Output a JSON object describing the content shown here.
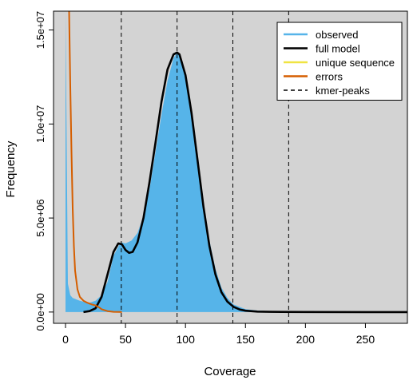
{
  "colors": {
    "plot_background": "#d3d3d3",
    "observed": "#56b4e9",
    "full_model": "#000000",
    "unique_sequence": "#f0e442",
    "errors": "#d55e00",
    "kmer_peaks": "#000000"
  },
  "chart_data": {
    "type": "area",
    "title": "",
    "xlabel": "Coverage",
    "ylabel": "Frequency",
    "xlim": [
      -10,
      285
    ],
    "ylim": [
      -600000,
      16000000
    ],
    "x_ticks": [
      0,
      50,
      100,
      150,
      200,
      250
    ],
    "x_tick_labels": [
      "0",
      "50",
      "100",
      "150",
      "200",
      "250"
    ],
    "y_ticks": [
      0,
      5000000,
      10000000,
      15000000
    ],
    "y_tick_labels": [
      "0.0e+00",
      "5.0e+06",
      "1.0e+07",
      "1.5e+07"
    ],
    "grid": false,
    "legend_position": "top-right",
    "legend": [
      {
        "label": "observed",
        "style": "observed"
      },
      {
        "label": "full model",
        "style": "full_model"
      },
      {
        "label": "unique sequence",
        "style": "unique_sequence"
      },
      {
        "label": "errors",
        "style": "errors"
      },
      {
        "label": "kmer-peaks",
        "style": "kmer_peaks"
      }
    ],
    "kmer_peaks": [
      46.5,
      93,
      139.5,
      186
    ],
    "series": [
      {
        "name": "observed",
        "style": "observed",
        "x": [
          0,
          2,
          4,
          6,
          8,
          10,
          12,
          15,
          20,
          25,
          30,
          35,
          40,
          45,
          47,
          50,
          55,
          60,
          65,
          70,
          75,
          80,
          85,
          90,
          93,
          95,
          100,
          105,
          110,
          115,
          120,
          125,
          130,
          135,
          140,
          150,
          160,
          170,
          180,
          200,
          250,
          285
        ],
        "y": [
          16000000,
          1500000,
          900000,
          750000,
          700000,
          650000,
          600000,
          550000,
          500000,
          600000,
          900000,
          1600000,
          3000000,
          3600000,
          3700000,
          3650000,
          3800000,
          4200000,
          5100000,
          6500000,
          8500000,
          10500000,
          12300000,
          13500000,
          13800000,
          13700000,
          12700000,
          10800000,
          8400000,
          5900000,
          3800000,
          2300000,
          1300000,
          750000,
          400000,
          150000,
          80000,
          50000,
          30000,
          10000,
          0,
          0
        ]
      },
      {
        "name": "full model",
        "style": "full_model",
        "x": [
          15,
          20,
          25,
          30,
          35,
          40,
          44,
          47,
          50,
          53,
          56,
          60,
          65,
          70,
          75,
          80,
          85,
          90,
          93,
          95,
          100,
          105,
          110,
          115,
          120,
          125,
          130,
          135,
          140,
          145,
          150,
          160,
          170,
          180,
          200,
          250,
          285
        ],
        "y": [
          0,
          50000,
          200000,
          800000,
          2000000,
          3200000,
          3650000,
          3600000,
          3300000,
          3150000,
          3200000,
          3700000,
          5000000,
          6900000,
          9000000,
          11200000,
          12900000,
          13700000,
          13800000,
          13700000,
          12600000,
          10600000,
          8100000,
          5600000,
          3500000,
          2000000,
          1050000,
          550000,
          280000,
          140000,
          70000,
          25000,
          10000,
          5000,
          2000,
          0,
          0
        ]
      },
      {
        "name": "errors",
        "style": "errors",
        "x": [
          3,
          4,
          5,
          6,
          7,
          8,
          10,
          12,
          15,
          18,
          20,
          22,
          25,
          28,
          30,
          35,
          40,
          45,
          47
        ],
        "y": [
          16000000,
          12000000,
          8500000,
          5500000,
          3500000,
          2200000,
          1200000,
          800000,
          600000,
          500000,
          450000,
          400000,
          350000,
          250000,
          150000,
          50000,
          10000,
          5000,
          0
        ]
      }
    ]
  }
}
